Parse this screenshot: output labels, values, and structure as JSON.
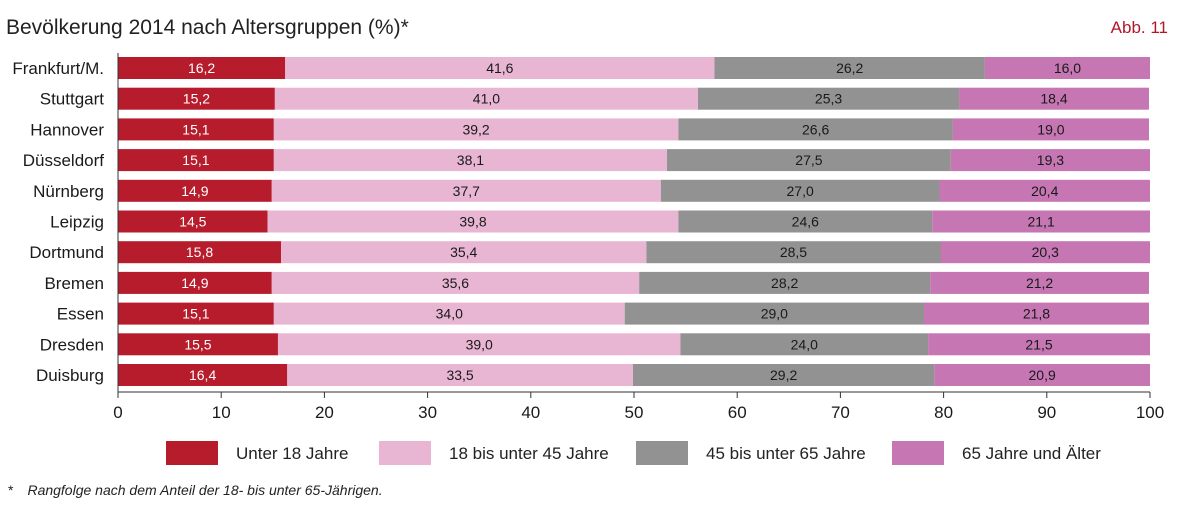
{
  "chart_data": {
    "type": "bar",
    "orientation": "horizontal",
    "stacked": true,
    "title": "Bevölkerung 2014 nach Altersgruppen (%)*",
    "figure_label": "Abb. 11",
    "categories": [
      "Frankfurt/M.",
      "Stuttgart",
      "Hannover",
      "Düsseldorf",
      "Nürnberg",
      "Leipzig",
      "Dortmund",
      "Bremen",
      "Essen",
      "Dresden",
      "Duisburg"
    ],
    "series": [
      {
        "name": "Unter 18 Jahre",
        "color": "#b61c2c",
        "label_color": "#ffffff",
        "values": [
          16.2,
          15.2,
          15.1,
          15.1,
          14.9,
          14.5,
          15.8,
          14.9,
          15.1,
          15.5,
          16.4
        ],
        "labels": [
          "16,2",
          "15,2",
          "15,1",
          "15,1",
          "14,9",
          "14,5",
          "15,8",
          "14,9",
          "15,1",
          "15,5",
          "16,4"
        ]
      },
      {
        "name": "18 bis unter 45 Jahre",
        "color": "#e8b6d3",
        "label_color": "#1a1a1a",
        "values": [
          41.6,
          41.0,
          39.2,
          38.1,
          37.7,
          39.8,
          35.4,
          35.6,
          34.0,
          39.0,
          33.5
        ],
        "labels": [
          "41,6",
          "41,0",
          "39,2",
          "38,1",
          "37,7",
          "39,8",
          "35,4",
          "35,6",
          "34,0",
          "39,0",
          "33,5"
        ]
      },
      {
        "name": "45 bis unter 65 Jahre",
        "color": "#929292",
        "label_color": "#1a1a1a",
        "values": [
          26.2,
          25.3,
          26.6,
          27.5,
          27.0,
          24.6,
          28.5,
          28.2,
          29.0,
          24.0,
          29.2
        ],
        "labels": [
          "26,2",
          "25,3",
          "26,6",
          "27,5",
          "27,0",
          "24,6",
          "28,5",
          "28,2",
          "29,0",
          "24,0",
          "29,2"
        ]
      },
      {
        "name": "65 Jahre und Älter",
        "color": "#c576b3",
        "label_color": "#1a1a1a",
        "values": [
          16.0,
          18.4,
          19.0,
          19.3,
          20.4,
          21.1,
          20.3,
          21.2,
          21.8,
          21.5,
          20.9
        ],
        "labels": [
          "16,0",
          "18,4",
          "19,0",
          "19,3",
          "20,4",
          "21,1",
          "20,3",
          "21,2",
          "21,8",
          "21,5",
          "20,9"
        ]
      }
    ],
    "xlim": [
      0,
      100
    ],
    "xticks": [
      0,
      10,
      20,
      30,
      40,
      50,
      60,
      70,
      80,
      90,
      100
    ],
    "xlabel": "",
    "ylabel": "",
    "grid": false,
    "legend_position": "bottom"
  },
  "footnote": {
    "mark": "*",
    "text": "Rangfolge nach dem Anteil der 18- bis unter 65-Jährigen."
  }
}
